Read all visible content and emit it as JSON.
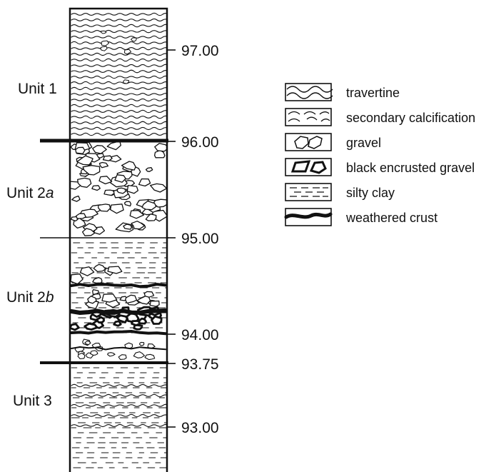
{
  "units": [
    {
      "id": "unit-1",
      "name": "Unit 1",
      "suffix": ""
    },
    {
      "id": "unit-2a",
      "name": "Unit 2",
      "suffix": "a"
    },
    {
      "id": "unit-2b",
      "name": "Unit 2",
      "suffix": "b"
    },
    {
      "id": "unit-3",
      "name": "Unit 3",
      "suffix": ""
    }
  ],
  "depth_marks": [
    "97.00",
    "96.00",
    "95.00",
    "94.00",
    "93.75",
    "93.00"
  ],
  "legend": [
    {
      "id": "travertine",
      "label": "travertine",
      "pattern": "waves"
    },
    {
      "id": "secondary-calcification",
      "label": "secondary calcification",
      "pattern": "dashed-waves"
    },
    {
      "id": "gravel",
      "label": "gravel",
      "pattern": "gravel"
    },
    {
      "id": "black-encrusted-gravel",
      "label": "black encrusted gravel",
      "pattern": "black-gravel"
    },
    {
      "id": "silty-clay",
      "label": "silty clay",
      "pattern": "dashes"
    },
    {
      "id": "weathered-crust",
      "label": "weathered crust",
      "pattern": "crust"
    }
  ],
  "colors": {
    "ink": "#111111",
    "paper": "#ffffff"
  }
}
